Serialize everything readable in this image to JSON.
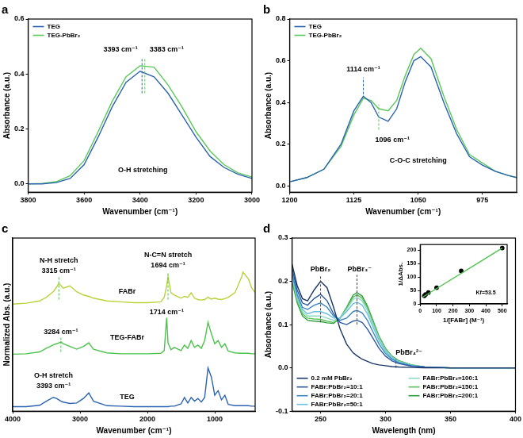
{
  "chart_data": [
    {
      "type": "line",
      "title": "a",
      "xlabel": "Wavenumber (cm⁻¹)",
      "ylabel": "Absorbance (a.u.)",
      "x": [
        3800,
        3750,
        3700,
        3650,
        3600,
        3550,
        3500,
        3450,
        3400,
        3350,
        3300,
        3250,
        3200,
        3150,
        3100,
        3050,
        3000
      ],
      "series": [
        {
          "name": "TEG",
          "color": "#2b63b0",
          "values": [
            0.0,
            0.0,
            0.005,
            0.02,
            0.07,
            0.17,
            0.28,
            0.37,
            0.41,
            0.39,
            0.33,
            0.25,
            0.17,
            0.1,
            0.06,
            0.035,
            0.02
          ]
        },
        {
          "name": "TEG-PbBr₂",
          "color": "#5ac85a",
          "values": [
            0.0,
            0.002,
            0.008,
            0.03,
            0.085,
            0.19,
            0.3,
            0.39,
            0.43,
            0.425,
            0.36,
            0.28,
            0.19,
            0.12,
            0.07,
            0.04,
            0.025
          ]
        }
      ],
      "xlim": [
        3800,
        3000
      ],
      "xticks": [
        3800,
        3600,
        3400,
        3200,
        3000
      ],
      "ylim": [
        -0.03,
        0.6
      ],
      "yticks": [
        {
          "value": 0,
          "label": "0.0"
        },
        0.2,
        0.4,
        0.6
      ],
      "grid": false,
      "legend": "upper left",
      "reference_lines": [
        {
          "x": 3393,
          "y": [
            0.33,
            0.46
          ],
          "color": "#2b63b0"
        },
        {
          "x": 3383,
          "y": [
            0.33,
            0.46
          ],
          "color": "#5ac85a"
        }
      ],
      "annotations": [
        {
          "text": "3393 cm⁻¹",
          "x": 3470,
          "y": 0.49
        },
        {
          "text": "3383 cm⁻¹",
          "x": 3305,
          "y": 0.49
        },
        {
          "text": "O-H stretching",
          "x": 3390,
          "y": 0.05
        }
      ]
    },
    {
      "type": "line",
      "title": "b",
      "xlabel": "Wavenumber (cm⁻¹)",
      "ylabel": "Absorbance (a.u.)",
      "x": [
        1200,
        1180,
        1160,
        1140,
        1125,
        1114,
        1105,
        1096,
        1085,
        1075,
        1065,
        1055,
        1047,
        1035,
        1020,
        1005,
        990,
        975,
        960,
        945,
        935
      ],
      "series": [
        {
          "name": "TEG",
          "color": "#2b63b0",
          "values": [
            0.02,
            0.04,
            0.08,
            0.2,
            0.36,
            0.43,
            0.4,
            0.33,
            0.31,
            0.37,
            0.5,
            0.6,
            0.62,
            0.57,
            0.4,
            0.25,
            0.14,
            0.1,
            0.07,
            0.05,
            0.04
          ]
        },
        {
          "name": "TEG-PbBr₂",
          "color": "#5ac85a",
          "values": [
            0.02,
            0.04,
            0.08,
            0.19,
            0.34,
            0.42,
            0.41,
            0.37,
            0.36,
            0.41,
            0.53,
            0.63,
            0.66,
            0.61,
            0.43,
            0.27,
            0.15,
            0.11,
            0.07,
            0.05,
            0.04
          ]
        }
      ],
      "xlim": [
        1200,
        935
      ],
      "xticks": [
        1200,
        1125,
        1050,
        975
      ],
      "ylim": [
        -0.03,
        0.8
      ],
      "yticks": [
        {
          "value": 0,
          "label": "0.0"
        },
        0.2,
        0.4,
        0.6,
        0.8
      ],
      "grid": false,
      "legend": "upper left",
      "reference_lines": [
        {
          "x": 1114,
          "y": [
            0.44,
            0.52
          ],
          "color": "#2b63b0"
        },
        {
          "x": 1096,
          "y": [
            0.27,
            0.39
          ],
          "color": "#5ac85a"
        }
      ],
      "annotations": [
        {
          "text": "1114 cm⁻¹",
          "x": 1114,
          "y": 0.56
        },
        {
          "text": "1096 cm⁻¹",
          "x": 1080,
          "y": 0.22
        },
        {
          "text": "C-O-C stretching",
          "x": 1050,
          "y": 0.12
        }
      ]
    },
    {
      "type": "line",
      "title": "c",
      "xlabel": "Wavenumber (cm⁻¹)",
      "ylabel": "Normalized Abs. (a.u.)",
      "x": [
        4000,
        3800,
        3600,
        3500,
        3400,
        3393,
        3350,
        3315,
        3284,
        3250,
        3150,
        3050,
        2950,
        2870,
        2800,
        2600,
        2400,
        2200,
        2000,
        1800,
        1750,
        1714,
        1694,
        1650,
        1600,
        1500,
        1450,
        1400,
        1350,
        1300,
        1250,
        1200,
        1150,
        1100,
        1050,
        1000,
        950,
        900,
        850,
        800,
        700,
        600,
        580,
        500,
        450,
        400
      ],
      "series": [
        {
          "name": "FABr",
          "color": "#b8d23a",
          "label_at": [
            2300,
            2.62
          ],
          "values": [
            2.35,
            2.37,
            2.42,
            2.5,
            2.62,
            2.63,
            2.72,
            2.8,
            2.76,
            2.7,
            2.75,
            2.62,
            2.55,
            2.52,
            2.48,
            2.42,
            2.4,
            2.38,
            2.38,
            2.4,
            2.5,
            2.75,
            2.95,
            2.6,
            2.55,
            2.48,
            2.52,
            2.5,
            2.6,
            2.48,
            2.45,
            2.44,
            2.45,
            2.5,
            2.46,
            2.48,
            2.46,
            2.45,
            2.47,
            2.5,
            2.6,
            2.95,
            3.05,
            2.9,
            2.7,
            2.6
          ]
        },
        {
          "name": "TEG-FABr",
          "color": "#4cc34c",
          "label_at": [
            2300,
            1.62
          ],
          "values": [
            1.25,
            1.26,
            1.3,
            1.38,
            1.45,
            1.46,
            1.48,
            1.5,
            1.52,
            1.48,
            1.42,
            1.36,
            1.42,
            1.5,
            1.36,
            1.28,
            1.26,
            1.26,
            1.26,
            1.27,
            1.33,
            2.05,
            1.5,
            1.35,
            1.4,
            1.33,
            1.45,
            1.38,
            1.55,
            1.4,
            1.45,
            1.38,
            1.55,
            1.95,
            1.7,
            1.48,
            1.55,
            1.4,
            1.48,
            1.32,
            1.28,
            1.27,
            1.27,
            1.27,
            1.26,
            1.26
          ]
        },
        {
          "name": "TEG",
          "color": "#2b63b0",
          "label_at": [
            2300,
            0.3
          ],
          "values": [
            0.1,
            0.1,
            0.13,
            0.22,
            0.3,
            0.3,
            0.28,
            0.25,
            0.22,
            0.2,
            0.17,
            0.18,
            0.28,
            0.4,
            0.22,
            0.12,
            0.11,
            0.1,
            0.1,
            0.1,
            0.1,
            0.1,
            0.1,
            0.11,
            0.11,
            0.16,
            0.3,
            0.18,
            0.3,
            0.22,
            0.28,
            0.2,
            0.3,
            0.95,
            0.75,
            0.35,
            0.45,
            0.25,
            0.35,
            0.15,
            0.12,
            0.12,
            0.12,
            0.12,
            0.11,
            0.11
          ]
        }
      ],
      "xlim": [
        4000,
        400
      ],
      "xticks": [
        4000,
        3000,
        2000,
        1000
      ],
      "ylim": [
        0,
        3.8
      ],
      "tick_labels": "x",
      "grid": false,
      "reference_lines": [
        {
          "x": 3315,
          "y": [
            2.45,
            2.95
          ],
          "color": "#4cc34c"
        },
        {
          "x": 3284,
          "y": [
            1.3,
            1.62
          ],
          "color": "#4cc34c"
        },
        {
          "x": 1694,
          "y": [
            2.45,
            3.05
          ],
          "color": "#4cc34c"
        }
      ],
      "annotations": [
        {
          "text": "N-H stretch",
          "x": 3315,
          "y": 3.3
        },
        {
          "text": "3315 cm⁻¹",
          "x": 3315,
          "y": 3.08
        },
        {
          "text": "N-C=N stretch",
          "x": 1694,
          "y": 3.42
        },
        {
          "text": "1694 cm⁻¹",
          "x": 1694,
          "y": 3.2
        },
        {
          "text": "3284 cm⁻¹",
          "x": 3284,
          "y": 1.74
        },
        {
          "text": "1714 cm⁻¹",
          "x": 1714,
          "y": 2.18
        },
        {
          "text": "O-H stretch",
          "x": 3393,
          "y": 0.78
        },
        {
          "text": "3393 cm⁻¹",
          "x": 3393,
          "y": 0.55
        }
      ]
    },
    {
      "type": "line",
      "title": "d",
      "xlabel": "Wavelength (nm)",
      "ylabel": "Absorbance (a.u.)",
      "x": [
        228,
        232,
        236,
        240,
        245,
        250,
        255,
        260,
        265,
        270,
        275,
        278,
        282,
        286,
        290,
        295,
        300,
        305,
        310,
        320,
        330,
        350,
        375,
        400
      ],
      "series": [
        {
          "name": "0.2 mM PbBr₂",
          "color": "#1a3668",
          "values": [
            0.24,
            0.19,
            0.16,
            0.155,
            0.18,
            0.2,
            0.185,
            0.14,
            0.09,
            0.055,
            0.035,
            0.028,
            0.02,
            0.015,
            0.01,
            0.007,
            0.005,
            0.003,
            0.002,
            0.001,
            0,
            0,
            0,
            0
          ]
        },
        {
          "name": "FABr:PbBr₂=10:1",
          "color": "#2c5aa0",
          "values": [
            0.23,
            0.18,
            0.15,
            0.145,
            0.16,
            0.17,
            0.155,
            0.125,
            0.105,
            0.1,
            0.108,
            0.11,
            0.105,
            0.09,
            0.07,
            0.045,
            0.027,
            0.016,
            0.01,
            0.004,
            0.002,
            0,
            0,
            0
          ]
        },
        {
          "name": "FABr:PbBr₂=20:1",
          "color": "#3b86c4",
          "values": [
            0.22,
            0.17,
            0.14,
            0.135,
            0.145,
            0.15,
            0.14,
            0.12,
            0.11,
            0.115,
            0.13,
            0.133,
            0.127,
            0.11,
            0.085,
            0.055,
            0.033,
            0.02,
            0.012,
            0.005,
            0.002,
            0,
            0,
            0
          ]
        },
        {
          "name": "FABr:PbBr₂=50:1",
          "color": "#6cc0e0",
          "values": [
            0.215,
            0.165,
            0.135,
            0.125,
            0.13,
            0.13,
            0.125,
            0.115,
            0.115,
            0.13,
            0.148,
            0.152,
            0.145,
            0.125,
            0.097,
            0.063,
            0.038,
            0.023,
            0.014,
            0.006,
            0.002,
            0,
            0,
            0
          ]
        },
        {
          "name": "FABr:PbBr₂=100:1",
          "color": "#8ad9c0",
          "values": [
            0.21,
            0.16,
            0.13,
            0.12,
            0.12,
            0.12,
            0.115,
            0.11,
            0.115,
            0.135,
            0.158,
            0.163,
            0.155,
            0.133,
            0.104,
            0.068,
            0.041,
            0.025,
            0.015,
            0.006,
            0.002,
            0,
            0,
            0
          ]
        },
        {
          "name": "FABr:PbBr₂=150:1",
          "color": "#5cc35c",
          "values": [
            0.205,
            0.155,
            0.125,
            0.115,
            0.113,
            0.112,
            0.108,
            0.105,
            0.115,
            0.138,
            0.163,
            0.169,
            0.161,
            0.139,
            0.108,
            0.071,
            0.043,
            0.026,
            0.016,
            0.007,
            0.002,
            0,
            0,
            0
          ]
        },
        {
          "name": "FABr:PbBr₂=200:1",
          "color": "#2e9e3e",
          "values": [
            0.2,
            0.15,
            0.12,
            0.11,
            0.108,
            0.107,
            0.104,
            0.103,
            0.115,
            0.14,
            0.168,
            0.174,
            0.166,
            0.143,
            0.112,
            0.073,
            0.045,
            0.027,
            0.017,
            0.007,
            0.002,
            0,
            0,
            0
          ]
        }
      ],
      "xlim": [
        228,
        400
      ],
      "xticks": [
        250,
        300,
        350,
        400
      ],
      "ylim": [
        -0.1,
        0.3
      ],
      "yticks": [
        -0.1,
        {
          "value": 0,
          "label": "0.0"
        },
        0.1,
        0.2,
        0.3
      ],
      "grid": false,
      "legend": "lower left",
      "reference_lines": [
        {
          "x": 250,
          "y": [
            0.105,
            0.215
          ],
          "color": "#444444"
        },
        {
          "x": 278,
          "y": [
            0.1,
            0.215
          ],
          "color": "#444444"
        },
        {
          "x": 308,
          "y": [
            0,
            0.02
          ],
          "color": "#444444"
        }
      ],
      "annotations": [
        {
          "text": "PbBr₂",
          "x": 250,
          "y": 0.228
        },
        {
          "text": "PbBr₃⁻",
          "x": 280,
          "y": 0.228
        },
        {
          "text": "PbBr₄²⁻",
          "x": 318,
          "y": 0.035
        }
      ],
      "inset": {
        "type": "scatter",
        "xlabel": "1/[FABr] (M⁻¹)",
        "ylabel": "1/ΔAbs.",
        "series": [
          {
            "x": [
              15,
              500
            ],
            "values": [
              25,
              207
            ],
            "color": "#4cc34c",
            "marker": "none",
            "line_style": "solid"
          },
          {
            "x": [
              25,
              33,
              50,
              100,
              250,
              500
            ],
            "values": [
              30,
              35,
              42,
              60,
              122,
              207
            ],
            "color": "#000000",
            "marker": "circle",
            "line_style": "none"
          }
        ],
        "xlim": [
          0,
          530
        ],
        "xticks": [
          0,
          100,
          200,
          300,
          400,
          500
        ],
        "ylim": [
          0,
          220
        ],
        "yticks": [
          0,
          50,
          100,
          150,
          200
        ],
        "grid": false,
        "annotations": [
          {
            "text": "Kf=53.5",
            "x": 400,
            "y": 40
          }
        ]
      }
    }
  ]
}
